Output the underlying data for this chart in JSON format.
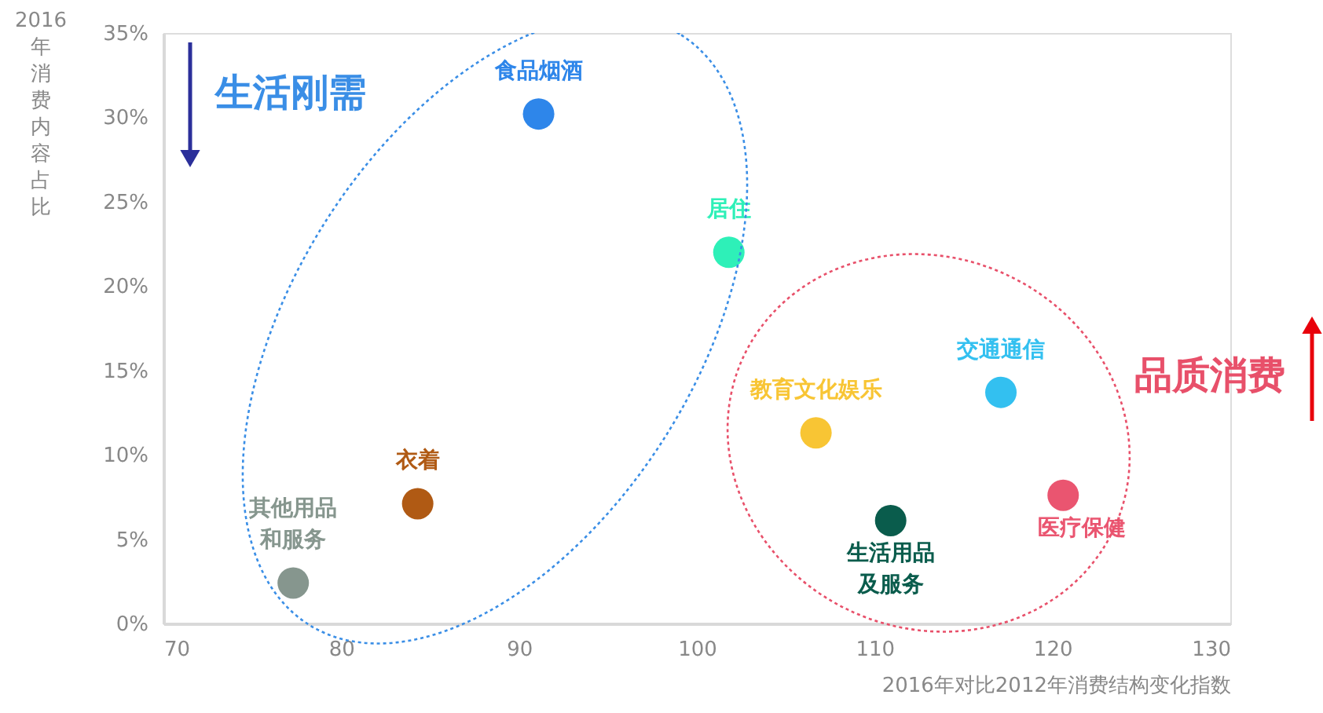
{
  "chart_data": {
    "type": "scatter",
    "xlabel": "2016年对比2012年消费结构变化指数",
    "ylabel": "2016年消费内容占比",
    "xlim": [
      70,
      130
    ],
    "xticks": [
      70,
      80,
      90,
      100,
      110,
      120,
      130
    ],
    "ylim": [
      0,
      35
    ],
    "yticks": [
      {
        "value": 0,
        "label": "0%"
      },
      {
        "value": 5,
        "label": "5%"
      },
      {
        "value": 10,
        "label": "10%"
      },
      {
        "value": 15,
        "label": "15%"
      },
      {
        "value": 20,
        "label": "20%"
      },
      {
        "value": 25,
        "label": "25%"
      },
      {
        "value": 30,
        "label": "30%"
      },
      {
        "value": 35,
        "label": "35%"
      }
    ],
    "grid": false,
    "legend": false,
    "marker": "circle",
    "annotations": [
      "生活刚需",
      "品质消费"
    ],
    "series": [
      {
        "name": "食品烟酒",
        "color": "#2e86ea",
        "x": [
          91.1
        ],
        "values": [
          30.2
        ]
      },
      {
        "name": "居住",
        "color": "#2ef0b8",
        "x": [
          101.8
        ],
        "values": [
          22.0
        ]
      },
      {
        "name": "教育文化娱乐",
        "color": "#f8c534",
        "x": [
          106.7
        ],
        "values": [
          11.3
        ]
      },
      {
        "name": "交通通信",
        "color": "#33c0f0",
        "x": [
          117.1
        ],
        "values": [
          13.7
        ]
      },
      {
        "name": "医疗保健",
        "color": "#ea5570",
        "x": [
          120.6
        ],
        "values": [
          7.6
        ]
      },
      {
        "name": "生活用品及服务",
        "color": "#0a5c4c",
        "x": [
          110.9
        ],
        "values": [
          6.1
        ]
      },
      {
        "name": "衣着",
        "color": "#b05a14",
        "x": [
          84.3
        ],
        "values": [
          7.1
        ]
      },
      {
        "name": "其他用品和服务",
        "color": "#86968e",
        "x": [
          77.3
        ],
        "values": [
          2.4
        ]
      }
    ]
  }
}
